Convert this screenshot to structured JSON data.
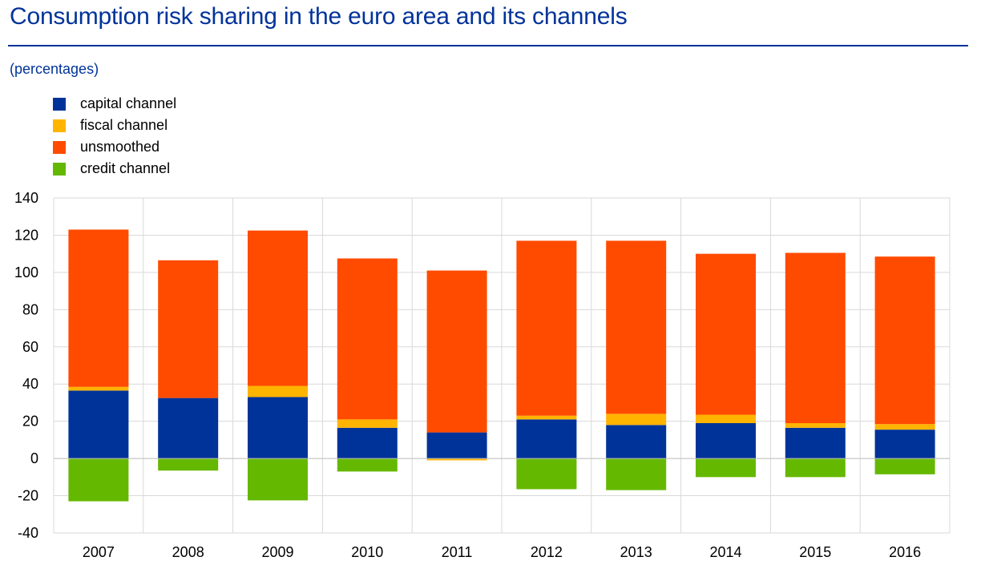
{
  "header": {
    "title": "Consumption risk sharing in the euro area and its channels",
    "subtitle": "(percentages)"
  },
  "colors": {
    "capital": "#003399",
    "fiscal": "#ffb400",
    "unsmoothed": "#ff4b00",
    "credit": "#65b800",
    "accent": "#003399",
    "grid": "#d9d9d9"
  },
  "legend": {
    "items": [
      {
        "label": "capital channel",
        "color": "#003399"
      },
      {
        "label": "fiscal channel",
        "color": "#ffb400"
      },
      {
        "label": "unsmoothed",
        "color": "#ff4b00"
      },
      {
        "label": "credit channel",
        "color": "#65b800"
      }
    ]
  },
  "chart_data": {
    "type": "bar",
    "stacked": true,
    "title": "Consumption risk sharing in the euro area and its channels",
    "subtitle": "(percentages)",
    "xlabel": "",
    "ylabel": "",
    "ylim": [
      -40,
      140
    ],
    "yticks": [
      -40,
      -20,
      0,
      20,
      40,
      60,
      80,
      100,
      120,
      140
    ],
    "grid": true,
    "legend_position": "top-left",
    "categories": [
      "2007",
      "2008",
      "2009",
      "2010",
      "2011",
      "2012",
      "2013",
      "2014",
      "2015",
      "2016"
    ],
    "series": [
      {
        "name": "capital channel",
        "key": "capital",
        "values": [
          36.5,
          32.5,
          33,
          16.5,
          14,
          21,
          18,
          19,
          16.5,
          15.5
        ]
      },
      {
        "name": "fiscal channel",
        "key": "fiscal",
        "values": [
          2,
          0,
          6,
          4.5,
          -1,
          2,
          6,
          4.5,
          2.5,
          3
        ]
      },
      {
        "name": "unsmoothed",
        "key": "unsmoothed",
        "values": [
          84.5,
          74,
          83.5,
          86.5,
          87,
          94,
          93,
          86.5,
          91.5,
          90
        ]
      },
      {
        "name": "credit channel",
        "key": "credit",
        "values": [
          -23,
          -6.5,
          -22.5,
          -7,
          0,
          -16.5,
          -17,
          -10,
          -10,
          -8.5
        ]
      }
    ]
  }
}
